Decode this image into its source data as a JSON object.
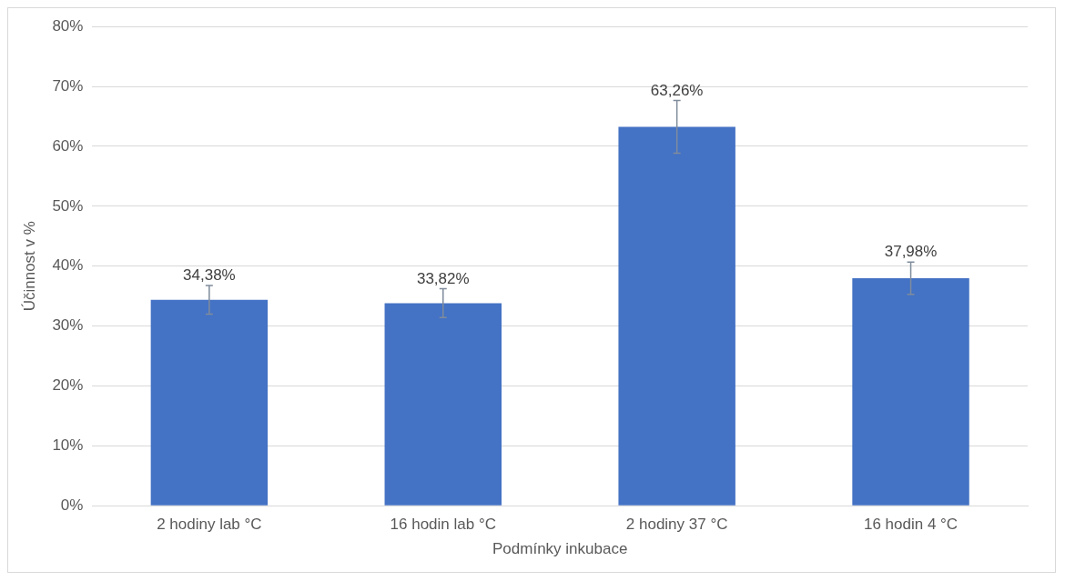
{
  "chart_data": {
    "type": "bar",
    "xlabel": "Podmínky inkubace",
    "ylabel": "Účinnost v %",
    "categories": [
      "2 hodiny lab °C",
      "16 hodin lab °C",
      "2 hodiny 37 °C",
      "16 hodin 4 °C"
    ],
    "values": [
      34.38,
      33.82,
      63.26,
      37.98
    ],
    "value_labels": [
      "34,38%",
      "33,82%",
      "63,26%",
      "37,98%"
    ],
    "errors": [
      2.4,
      2.4,
      4.4,
      2.7
    ],
    "color": "#4472c4",
    "ylim": [
      0,
      80
    ],
    "yticks": [
      {
        "value": 0,
        "label": "0%"
      },
      {
        "value": 10,
        "label": "10%"
      },
      {
        "value": 20,
        "label": "20%"
      },
      {
        "value": 30,
        "label": "30%"
      },
      {
        "value": 40,
        "label": "40%"
      },
      {
        "value": 50,
        "label": "50%"
      },
      {
        "value": 60,
        "label": "60%"
      },
      {
        "value": 70,
        "label": "70%"
      },
      {
        "value": 80,
        "label": "80%"
      }
    ],
    "grid": "y",
    "legend": false
  }
}
